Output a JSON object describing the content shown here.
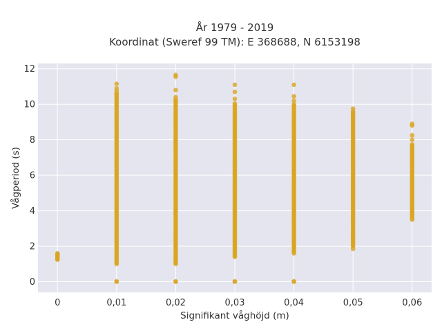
{
  "chart_data": {
    "type": "scatter",
    "title_line1": "År 1979 - 2019",
    "title_line2": "Koordinat (Sweref 99 TM): E 368688, N 6153198",
    "xlabel": "Signifikant våghöjd (m)",
    "ylabel": "Vågperiod (s)",
    "xlim": [
      -0.0033,
      0.0633
    ],
    "ylim": [
      -0.6,
      12.3
    ],
    "x_ticks": [
      0,
      0.01,
      0.02,
      0.03,
      0.04,
      0.05,
      0.06
    ],
    "x_tick_labels": [
      "0",
      "0,01",
      "0,02",
      "0,03",
      "0,04",
      "0,05",
      "0,06"
    ],
    "y_ticks": [
      0,
      2,
      4,
      6,
      8,
      10,
      12
    ],
    "y_tick_labels": [
      "0",
      "2",
      "4",
      "6",
      "8",
      "10",
      "12"
    ],
    "grid": true,
    "colors": {
      "marker": "#DAA520",
      "plot_bg": "#E5E5EF",
      "grid": "#FFFFFF"
    },
    "columns": [
      {
        "x": 0,
        "y_min": 1.25,
        "y_max": 1.6,
        "zeros": false,
        "outliers": [
          1.25,
          1.35,
          1.5,
          1.6
        ]
      },
      {
        "x": 0.01,
        "y_min": 1.0,
        "y_max": 10.6,
        "zeros": true,
        "outliers": [
          10.6,
          10.75,
          10.9,
          11.15
        ]
      },
      {
        "x": 0.02,
        "y_min": 1.0,
        "y_max": 10.2,
        "zeros": true,
        "outliers": [
          10.25,
          10.4,
          10.8,
          11.55,
          11.65
        ]
      },
      {
        "x": 0.03,
        "y_min": 1.4,
        "y_max": 10.1,
        "zeros": true,
        "outliers": [
          10.3,
          10.7,
          11.1
        ]
      },
      {
        "x": 0.04,
        "y_min": 1.6,
        "y_max": 10.0,
        "zeros": true,
        "outliers": [
          10.2,
          10.45,
          11.1
        ]
      },
      {
        "x": 0.05,
        "y_min": 2.0,
        "y_max": 9.6,
        "zeros": false,
        "outliers": [
          1.85,
          9.75
        ]
      },
      {
        "x": 0.06,
        "y_min": 3.5,
        "y_max": 7.8,
        "zeros": false,
        "outliers": [
          8.0,
          8.25,
          8.8,
          8.9
        ]
      }
    ]
  }
}
